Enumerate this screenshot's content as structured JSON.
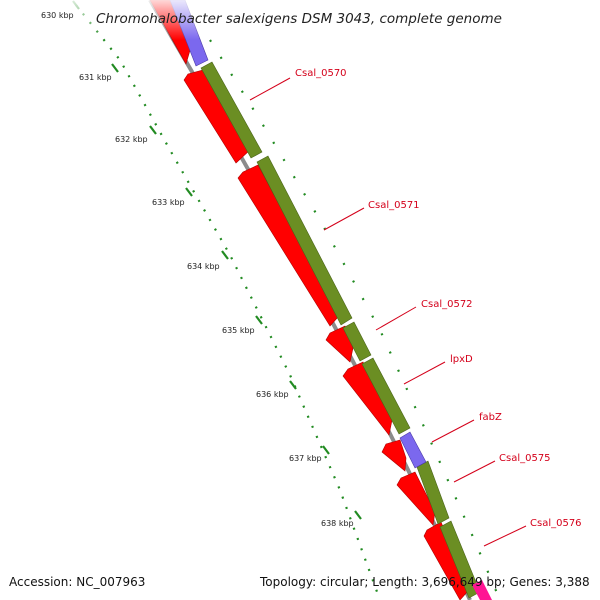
{
  "title": "Chromohalobacter salexigens DSM 3043, complete genome",
  "ticks": [
    {
      "label": "630 kbp"
    },
    {
      "label": "631 kbp"
    },
    {
      "label": "632 kbp"
    },
    {
      "label": "633 kbp"
    },
    {
      "label": "634 kbp"
    },
    {
      "label": "635 kbp"
    },
    {
      "label": "636 kbp"
    },
    {
      "label": "637 kbp"
    },
    {
      "label": "638 kbp"
    }
  ],
  "genes": [
    {
      "label": "Csal_0570"
    },
    {
      "label": "Csal_0571"
    },
    {
      "label": "Csal_0572"
    },
    {
      "label": "lpxD"
    },
    {
      "label": "fabZ"
    },
    {
      "label": "Csal_0575"
    },
    {
      "label": "Csal_0576"
    }
  ],
  "footer": {
    "accession": "Accession: NC_007963",
    "summary": "Topology: circular; Length: 3,696,649 bp; Genes: 3,388"
  },
  "colors": {
    "cds": "#ff0000",
    "gene": "#6b8e23",
    "rna": "#7b68ee",
    "backbone": "#8c8c8c",
    "tick": "#228b22",
    "label": "#d4001a",
    "accent": "#ff1493"
  }
}
